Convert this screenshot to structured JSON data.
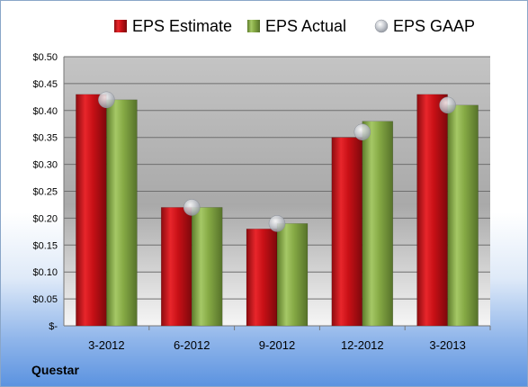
{
  "company": "Questar",
  "chart_data": {
    "type": "bar",
    "categories": [
      "3-2012",
      "6-2012",
      "9-2012",
      "12-2012",
      "3-2013"
    ],
    "series": [
      {
        "name": "EPS Estimate",
        "values": [
          0.43,
          0.22,
          0.18,
          0.35,
          0.43
        ],
        "color": "#d0101a",
        "kind": "bar"
      },
      {
        "name": "EPS Actual",
        "values": [
          0.42,
          0.22,
          0.19,
          0.38,
          0.41
        ],
        "color": "#8cb04a",
        "kind": "bar"
      },
      {
        "name": "EPS GAAP",
        "values": [
          0.42,
          0.22,
          0.19,
          0.36,
          0.41
        ],
        "color": "#b8bcc4",
        "kind": "marker"
      }
    ],
    "ylim": [
      0,
      0.5
    ],
    "yticks": [
      0,
      0.05,
      0.1,
      0.15,
      0.2,
      0.25,
      0.3,
      0.35,
      0.4,
      0.45,
      0.5
    ],
    "ytick_labels": [
      "$-",
      "$0.05",
      "$0.10",
      "$0.15",
      "$0.20",
      "$0.25",
      "$0.30",
      "$0.35",
      "$0.40",
      "$0.45",
      "$0.50"
    ],
    "grid": true,
    "legend": "top"
  }
}
